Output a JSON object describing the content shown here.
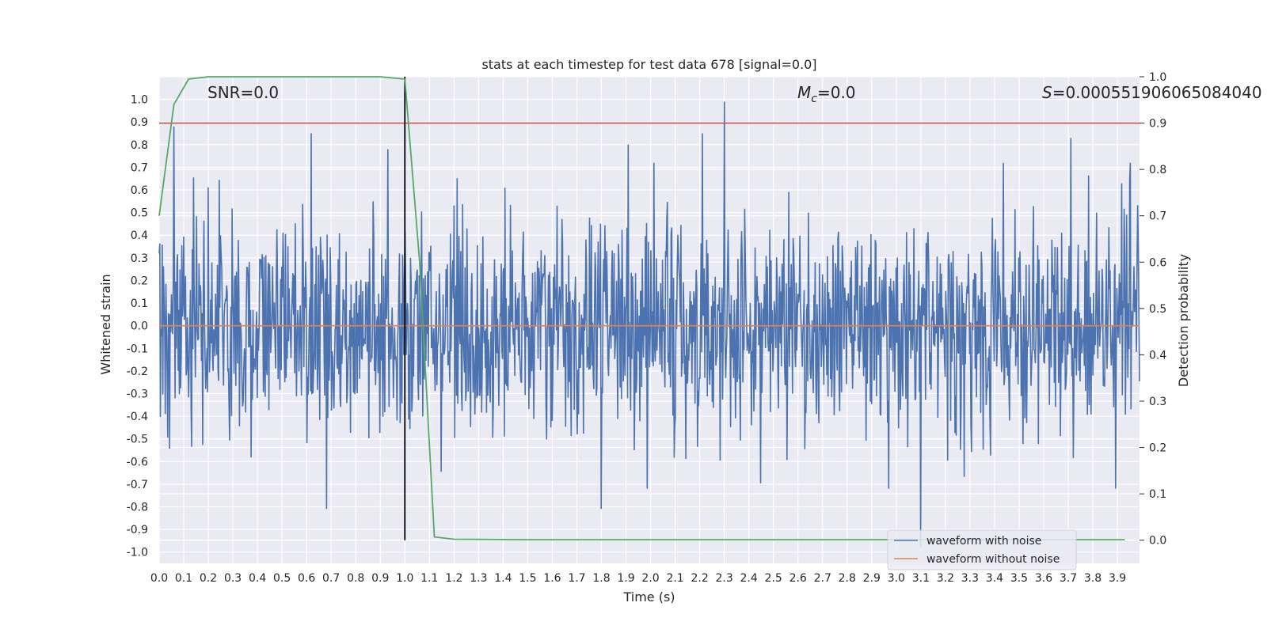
{
  "chart_data": {
    "type": "line",
    "title": "stats at each timestep for test data 678 [signal=0.0]",
    "xlabel": "Time (s)",
    "ylabel": "Whitened strain",
    "ylabel_right": "Detection probability",
    "xlim": [
      0.0,
      3.99
    ],
    "ylim": [
      -1.05,
      1.1
    ],
    "ylim_right": [
      -0.05,
      1.0
    ],
    "x_ticks": [
      "0.0",
      "0.1",
      "0.2",
      "0.3",
      "0.4",
      "0.5",
      "0.6",
      "0.7",
      "0.8",
      "0.9",
      "1.0",
      "1.1",
      "1.2",
      "1.3",
      "1.4",
      "1.5",
      "1.6",
      "1.7",
      "1.8",
      "1.9",
      "2.0",
      "2.1",
      "2.2",
      "2.3",
      "2.4",
      "2.5",
      "2.6",
      "2.7",
      "2.8",
      "2.9",
      "3.0",
      "3.1",
      "3.2",
      "3.3",
      "3.4",
      "3.5",
      "3.6",
      "3.7",
      "3.8",
      "3.9"
    ],
    "y_ticks": [
      "1.0",
      "0.9",
      "0.8",
      "0.7",
      "0.6",
      "0.5",
      "0.4",
      "0.3",
      "0.2",
      "0.1",
      "0.0",
      "-0.1",
      "-0.2",
      "-0.3",
      "-0.4",
      "-0.5",
      "-0.6",
      "-0.7",
      "-0.8",
      "-0.9",
      "-1.0"
    ],
    "y_ticks_right": [
      "1.0",
      "0.9",
      "0.8",
      "0.7",
      "0.6",
      "0.5",
      "0.4",
      "0.3",
      "0.2",
      "0.1",
      "0.0"
    ],
    "annotations": {
      "snr": "SNR=0.0",
      "mc_symbol": "M",
      "mc_subscript": "c",
      "mc_value": "=0.0",
      "s_symbol": "S",
      "s_value": "=0.000551906065084040"
    },
    "series": [
      {
        "name": "waveform with noise",
        "color": "#4c72b0",
        "description": "dense noise, approx. uniform amplitude",
        "highlight_peaks": [
          {
            "x": 0.06,
            "y": 0.88
          },
          {
            "x": 0.62,
            "y": 0.85
          },
          {
            "x": 0.93,
            "y": 0.78
          },
          {
            "x": 1.91,
            "y": 0.8
          },
          {
            "x": 2.21,
            "y": 0.85
          },
          {
            "x": 2.3,
            "y": 0.99
          },
          {
            "x": 3.71,
            "y": 0.83
          },
          {
            "x": 1.8,
            "y": -0.81
          },
          {
            "x": 3.1,
            "y": -0.98
          },
          {
            "x": 0.68,
            "y": -0.81
          }
        ]
      },
      {
        "name": "waveform without noise",
        "color": "#dd8452",
        "x": [
          0.0,
          3.99
        ],
        "y": [
          0.0,
          0.0
        ]
      },
      {
        "name": "detection probability",
        "color": "#55a868",
        "axis": "right",
        "x": [
          0.0,
          0.06,
          0.12,
          0.2,
          0.5,
          0.9,
          1.0,
          1.06,
          1.12,
          1.2,
          1.5,
          2.0,
          3.0,
          3.93
        ],
        "y": [
          0.7,
          0.94,
          0.995,
          1.0,
          1.0,
          1.0,
          0.995,
          0.6,
          0.007,
          0.002,
          0.001,
          0.001,
          0.001,
          0.001
        ]
      }
    ],
    "hlines": [
      {
        "axis": "right",
        "y": 0.9,
        "color": "#c44e52"
      }
    ],
    "vlines": [
      {
        "x": 1.0,
        "y_range": [
          0.0,
          1.0
        ],
        "axis": "right",
        "color": "#000000"
      }
    ],
    "legend": {
      "position": "lower right",
      "entries": [
        {
          "label": "waveform with noise",
          "color": "#4c72b0"
        },
        {
          "label": "waveform without noise",
          "color": "#dd8452"
        }
      ]
    },
    "grid": true
  }
}
